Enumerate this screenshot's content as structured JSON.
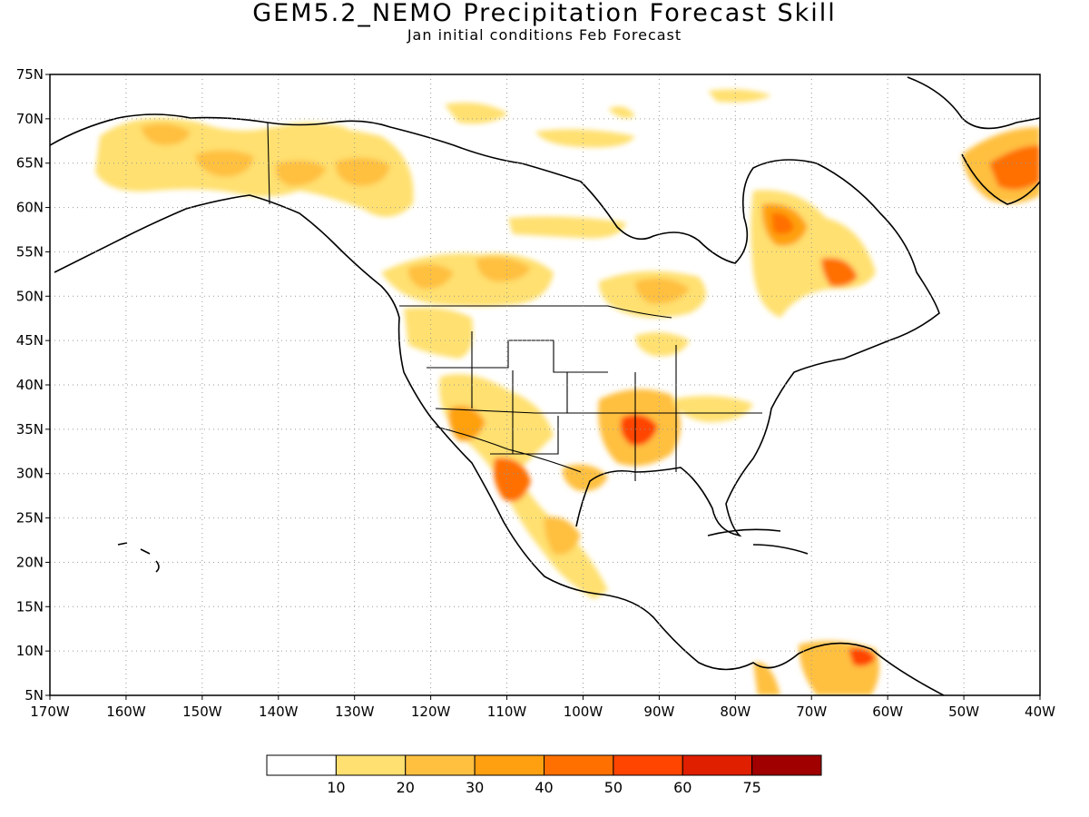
{
  "title": "GEM5.2_NEMO Precipitation Forecast Skill",
  "subtitle": "Jan initial conditions  Feb Forecast",
  "map": {
    "lon_range": [
      -170,
      -40
    ],
    "lat_range": [
      5,
      75
    ],
    "lon_ticks": [
      "170W",
      "160W",
      "150W",
      "140W",
      "130W",
      "120W",
      "110W",
      "100W",
      "90W",
      "80W",
      "70W",
      "60W",
      "50W",
      "40W"
    ],
    "lat_ticks": [
      "5N",
      "10N",
      "15N",
      "20N",
      "25N",
      "30N",
      "35N",
      "40N",
      "45N",
      "50N",
      "55N",
      "60N",
      "65N",
      "70N",
      "75N"
    ],
    "grid": "dotted"
  },
  "colorbar": {
    "labels": [
      "10",
      "20",
      "30",
      "40",
      "50",
      "60",
      "75"
    ],
    "colors": [
      "#ffffff",
      "#ffe070",
      "#ffc040",
      "#ffa010",
      "#ff7000",
      "#ff4500",
      "#e01e00",
      "#a00000"
    ]
  },
  "colors": {
    "land_outline": "#000000",
    "grid": "#999999"
  }
}
